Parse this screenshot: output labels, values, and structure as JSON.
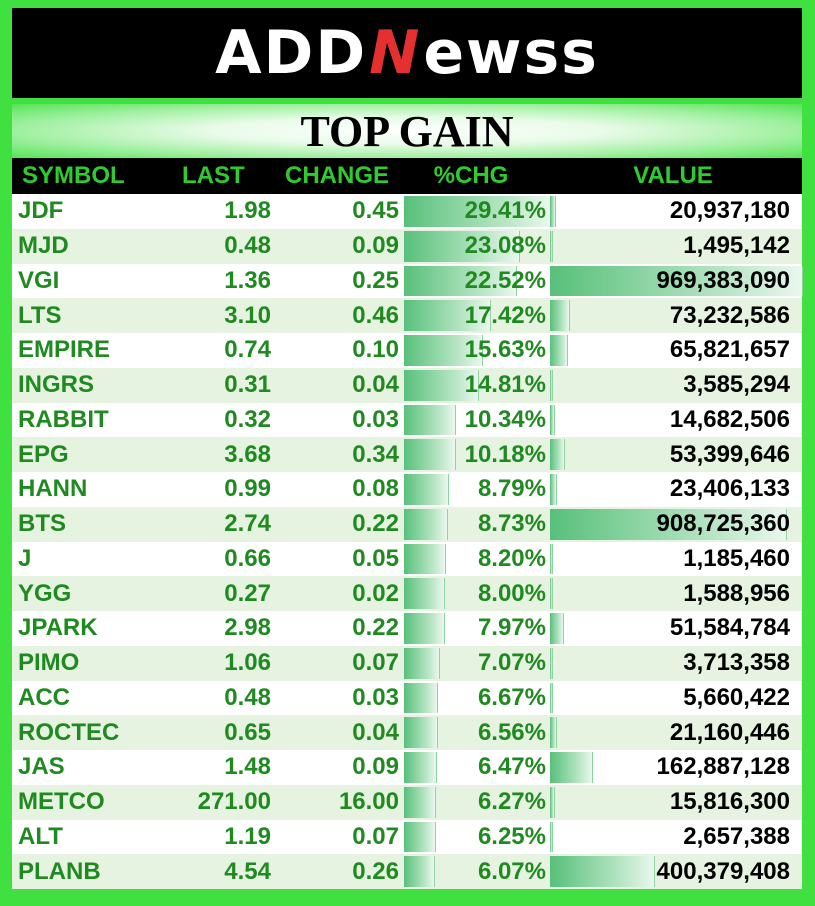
{
  "brand": {
    "logo_left": "ADD",
    "logo_n": "N",
    "logo_right": "ewss"
  },
  "title": "TOP GAIN",
  "columns": [
    "SYMBOL",
    "LAST",
    "CHANGE",
    "%CHG",
    "VALUE"
  ],
  "colors": {
    "frame": "#3fe03f",
    "header_text": "#2ecc2e",
    "symbol_text": "#1f8a1f",
    "value_text": "#000000",
    "alt_row": "#e5f3e0"
  },
  "rows": [
    {
      "symbol": "JDF",
      "last": "1.98",
      "change": "0.45",
      "pct": "29.41%",
      "pct_num": 29.41,
      "value": "20,937,180",
      "value_num": 20937180
    },
    {
      "symbol": "MJD",
      "last": "0.48",
      "change": "0.09",
      "pct": "23.08%",
      "pct_num": 23.08,
      "value": "1,495,142",
      "value_num": 1495142
    },
    {
      "symbol": "VGI",
      "last": "1.36",
      "change": "0.25",
      "pct": "22.52%",
      "pct_num": 22.52,
      "value": "969,383,090",
      "value_num": 969383090
    },
    {
      "symbol": "LTS",
      "last": "3.10",
      "change": "0.46",
      "pct": "17.42%",
      "pct_num": 17.42,
      "value": "73,232,586",
      "value_num": 73232586
    },
    {
      "symbol": "EMPIRE",
      "last": "0.74",
      "change": "0.10",
      "pct": "15.63%",
      "pct_num": 15.63,
      "value": "65,821,657",
      "value_num": 65821657
    },
    {
      "symbol": "INGRS",
      "last": "0.31",
      "change": "0.04",
      "pct": "14.81%",
      "pct_num": 14.81,
      "value": "3,585,294",
      "value_num": 3585294
    },
    {
      "symbol": "RABBIT",
      "last": "0.32",
      "change": "0.03",
      "pct": "10.34%",
      "pct_num": 10.34,
      "value": "14,682,506",
      "value_num": 14682506
    },
    {
      "symbol": "EPG",
      "last": "3.68",
      "change": "0.34",
      "pct": "10.18%",
      "pct_num": 10.18,
      "value": "53,399,646",
      "value_num": 53399646
    },
    {
      "symbol": "HANN",
      "last": "0.99",
      "change": "0.08",
      "pct": "8.79%",
      "pct_num": 8.79,
      "value": "23,406,133",
      "value_num": 23406133
    },
    {
      "symbol": "BTS",
      "last": "2.74",
      "change": "0.22",
      "pct": "8.73%",
      "pct_num": 8.73,
      "value": "908,725,360",
      "value_num": 908725360
    },
    {
      "symbol": "J",
      "last": "0.66",
      "change": "0.05",
      "pct": "8.20%",
      "pct_num": 8.2,
      "value": "1,185,460",
      "value_num": 1185460
    },
    {
      "symbol": "YGG",
      "last": "0.27",
      "change": "0.02",
      "pct": "8.00%",
      "pct_num": 8.0,
      "value": "1,588,956",
      "value_num": 1588956
    },
    {
      "symbol": "JPARK",
      "last": "2.98",
      "change": "0.22",
      "pct": "7.97%",
      "pct_num": 7.97,
      "value": "51,584,784",
      "value_num": 51584784
    },
    {
      "symbol": "PIMO",
      "last": "1.06",
      "change": "0.07",
      "pct": "7.07%",
      "pct_num": 7.07,
      "value": "3,713,358",
      "value_num": 3713358
    },
    {
      "symbol": "ACC",
      "last": "0.48",
      "change": "0.03",
      "pct": "6.67%",
      "pct_num": 6.67,
      "value": "5,660,422",
      "value_num": 5660422
    },
    {
      "symbol": "ROCTEC",
      "last": "0.65",
      "change": "0.04",
      "pct": "6.56%",
      "pct_num": 6.56,
      "value": "21,160,446",
      "value_num": 21160446
    },
    {
      "symbol": "JAS",
      "last": "1.48",
      "change": "0.09",
      "pct": "6.47%",
      "pct_num": 6.47,
      "value": "162,887,128",
      "value_num": 162887128
    },
    {
      "symbol": "METCO",
      "last": "271.00",
      "change": "16.00",
      "pct": "6.27%",
      "pct_num": 6.27,
      "value": "15,816,300",
      "value_num": 15816300
    },
    {
      "symbol": "ALT",
      "last": "1.19",
      "change": "0.07",
      "pct": "6.25%",
      "pct_num": 6.25,
      "value": "2,657,388",
      "value_num": 2657388
    },
    {
      "symbol": "PLANB",
      "last": "4.54",
      "change": "0.26",
      "pct": "6.07%",
      "pct_num": 6.07,
      "value": "400,379,408",
      "value_num": 400379408
    }
  ]
}
